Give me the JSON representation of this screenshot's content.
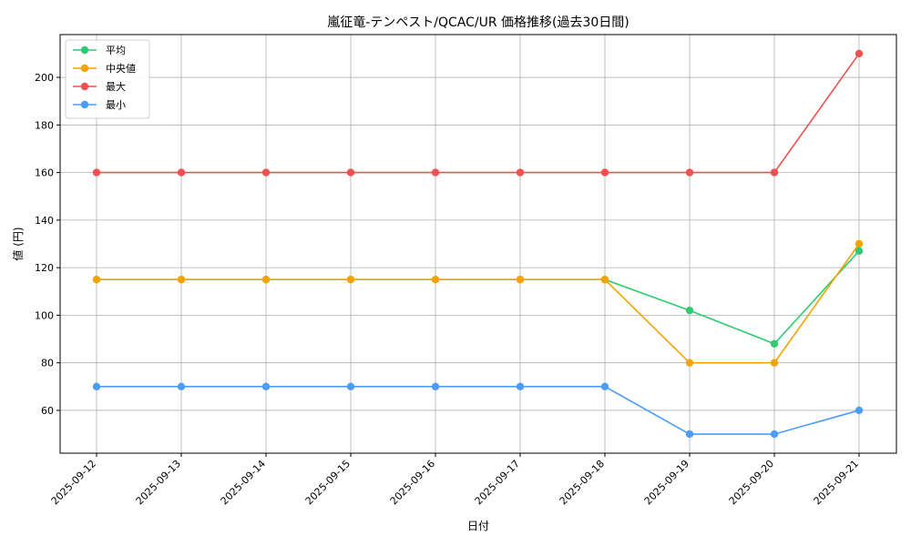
{
  "chart_data": {
    "type": "line",
    "title": "嵐征竜-テンペスト/QCAC/UR 価格推移(過去30日間)",
    "xlabel": "日付",
    "ylabel": "値 (円)",
    "categories": [
      "2025-09-12",
      "2025-09-13",
      "2025-09-14",
      "2025-09-15",
      "2025-09-16",
      "2025-09-17",
      "2025-09-18",
      "2025-09-19",
      "2025-09-20",
      "2025-09-21"
    ],
    "ylim": [
      42,
      218
    ],
    "yticks": [
      60,
      80,
      100,
      120,
      140,
      160,
      180,
      200
    ],
    "grid": true,
    "legend_position": "top-left",
    "series": [
      {
        "name": "平均",
        "color": "#2ecc71",
        "values": [
          115,
          115,
          115,
          115,
          115,
          115,
          115,
          102,
          88,
          127
        ]
      },
      {
        "name": "中央値",
        "color": "#f5a300",
        "values": [
          115,
          115,
          115,
          115,
          115,
          115,
          115,
          80,
          80,
          130
        ]
      },
      {
        "name": "最大",
        "color": "#f05050",
        "values": [
          160,
          160,
          160,
          160,
          160,
          160,
          160,
          160,
          160,
          210
        ]
      },
      {
        "name": "最小",
        "color": "#4b9df8",
        "values": [
          70,
          70,
          70,
          70,
          70,
          70,
          70,
          50,
          50,
          60
        ]
      }
    ]
  }
}
